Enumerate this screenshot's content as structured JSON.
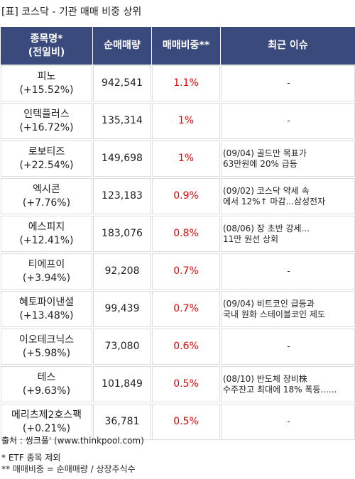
{
  "header": {
    "title": "[표] 코스닥 - 기관 매매 비중 상위"
  },
  "table": {
    "columns": [
      [
        "종목명*",
        "(전일비)"
      ],
      [
        "순매매량"
      ],
      [
        "매매비중**"
      ],
      [
        "최근 이슈"
      ]
    ],
    "rows": [
      {
        "name": "피노",
        "change": "(+15.52%)",
        "volume": "942,541",
        "ratio": "1.1%",
        "issue": [
          "-"
        ]
      },
      {
        "name": "인텍플러스",
        "change": "(+16.72%)",
        "volume": "135,314",
        "ratio": "1%",
        "issue": [
          "-"
        ]
      },
      {
        "name": "로보티즈",
        "change": "(+22.54%)",
        "volume": "149,698",
        "ratio": "1%",
        "issue": [
          "(09/04) 골드만 목표가",
          "63만원에 20% 급등"
        ]
      },
      {
        "name": "엑시콘",
        "change": "(+7.76%)",
        "volume": "123,183",
        "ratio": "0.9%",
        "issue": [
          "(09/02) 코스닥 약세 속",
          "에서 12%↑ 마감...삼성전자"
        ]
      },
      {
        "name": "에스피지",
        "change": "(+12.41%)",
        "volume": "183,076",
        "ratio": "0.8%",
        "issue": [
          "(08/06) 장 초반 강세...",
          "11만 원선 상회"
        ]
      },
      {
        "name": "티에프이",
        "change": "(+3.94%)",
        "volume": "92,208",
        "ratio": "0.7%",
        "issue": [
          "-"
        ]
      },
      {
        "name": "혜토파이낸셜",
        "change": "(+13.48%)",
        "volume": "99,439",
        "ratio": "0.7%",
        "issue": [
          "(09/04) 비트코인 급등과",
          "국내 원화 스테이블코인 제도"
        ]
      },
      {
        "name": "이오테크닉스",
        "change": "(+5.98%)",
        "volume": "73,080",
        "ratio": "0.6%",
        "issue": [
          "-"
        ]
      },
      {
        "name": "테스",
        "change": "(+9.63%)",
        "volume": "101,849",
        "ratio": "0.5%",
        "issue": [
          "(08/10) 반도체 장비株",
          "수주잔고 최대에 18% 폭등......"
        ]
      },
      {
        "name": "메리츠제2호스팩",
        "change": "(+0.21%)",
        "volume": "36,781",
        "ratio": "0.5%",
        "issue": [
          "-"
        ]
      }
    ]
  },
  "footer": {
    "source": "출처 : 씽크풀' (www.thinkpool.com)",
    "notes": [
      "* ETF 종목 제외",
      "** 매매비중 = 순매매량 / 상장주식수"
    ]
  }
}
